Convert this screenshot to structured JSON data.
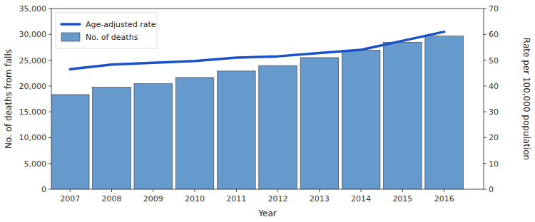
{
  "chart_data": {
    "type": "bar",
    "x": [
      2007,
      2008,
      2009,
      2010,
      2011,
      2012,
      2013,
      2014,
      2015,
      2016
    ],
    "xlim": [
      2006.55,
      2016.95
    ],
    "xticks": [
      2007,
      2008,
      2009,
      2010,
      2011,
      2012,
      2013,
      2014,
      2015,
      2016
    ],
    "xlabel": "Year",
    "ylabel": "No. of deaths from falls",
    "y2label": "Rate per 100,000 population",
    "ylim": [
      0,
      35000
    ],
    "yticks": [
      0,
      {
        "value": 5000,
        "label": "5,000"
      },
      {
        "value": 10000,
        "label": "10,000"
      },
      {
        "value": 15000,
        "label": "15,000"
      },
      {
        "value": 20000,
        "label": "20,000"
      },
      {
        "value": 25000,
        "label": "25,000"
      },
      {
        "value": 30000,
        "label": "30,000"
      },
      {
        "value": 35000,
        "label": "35,000"
      }
    ],
    "y2lim": [
      0,
      70
    ],
    "y2ticks": [
      0,
      10,
      20,
      30,
      40,
      50,
      60,
      70
    ],
    "grid": false,
    "legend": "upper left",
    "series": [
      {
        "name": "Age-adjusted rate",
        "type": "line",
        "axis": "y2",
        "color": "#1a50c8",
        "values": [
          46.5,
          48.3,
          49.0,
          49.7,
          51.0,
          51.5,
          52.8,
          54.0,
          57.5,
          61.0
        ]
      },
      {
        "name": "No. of deaths",
        "type": "bar",
        "color": "#6699cc",
        "values": [
          18335,
          19766,
          20450,
          21649,
          22892,
          23956,
          25500,
          26933,
          28486,
          29668
        ]
      }
    ]
  }
}
